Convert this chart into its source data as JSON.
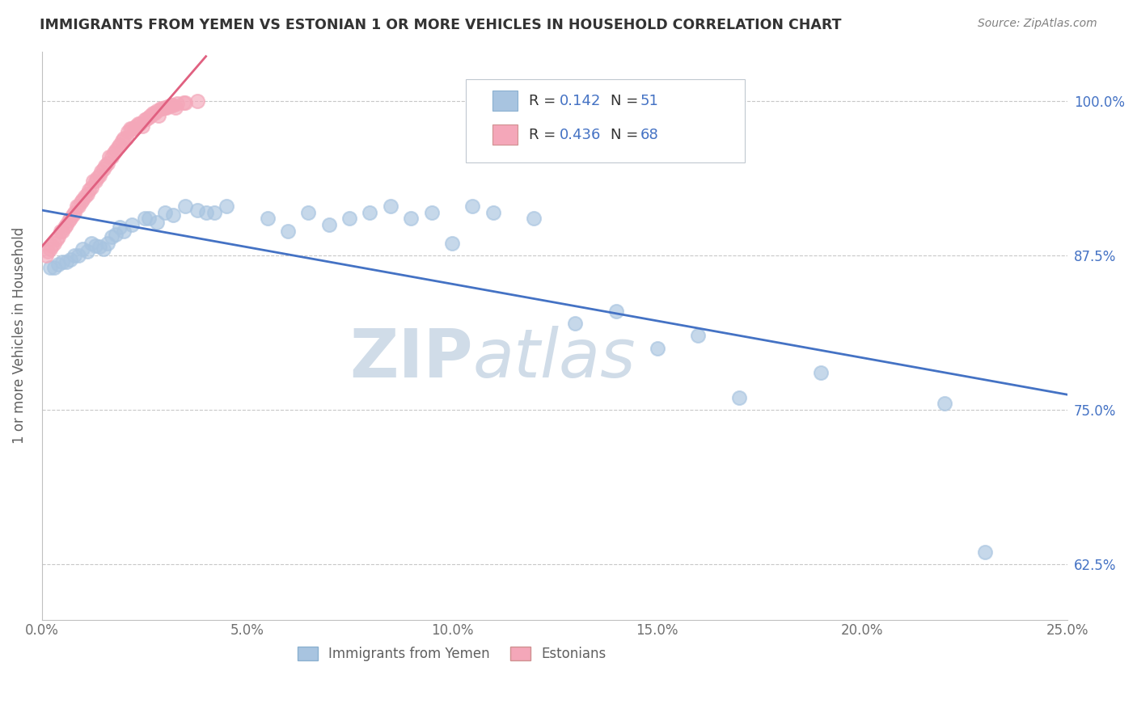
{
  "title": "IMMIGRANTS FROM YEMEN VS ESTONIAN 1 OR MORE VEHICLES IN HOUSEHOLD CORRELATION CHART",
  "source_text": "Source: ZipAtlas.com",
  "ylabel": "1 or more Vehicles in Household",
  "x_tick_labels": [
    "0.0%",
    "5.0%",
    "10.0%",
    "15.0%",
    "20.0%",
    "25.0%"
  ],
  "x_tick_values": [
    0.0,
    5.0,
    10.0,
    15.0,
    20.0,
    25.0
  ],
  "y_tick_labels": [
    "62.5%",
    "75.0%",
    "87.5%",
    "100.0%"
  ],
  "y_tick_values": [
    62.5,
    75.0,
    87.5,
    100.0
  ],
  "xlim": [
    0.0,
    25.0
  ],
  "ylim": [
    58.0,
    104.0
  ],
  "legend_labels": [
    "Immigrants from Yemen",
    "Estonians"
  ],
  "blue_color": "#A8C4E0",
  "pink_color": "#F4A7B9",
  "blue_line_color": "#4472C4",
  "pink_line_color": "#E06080",
  "title_color": "#333333",
  "source_color": "#808080",
  "legend_value_color": "#4472C4",
  "watermark_text": "ZIPatlas",
  "watermark_color": "#D0DCE8",
  "blue_scatter_x": [
    0.3,
    0.5,
    0.8,
    1.0,
    1.2,
    1.5,
    0.4,
    0.7,
    1.1,
    1.4,
    0.6,
    0.9,
    1.3,
    1.7,
    0.2,
    1.6,
    1.8,
    2.0,
    2.2,
    2.5,
    3.0,
    3.2,
    3.5,
    4.0,
    4.5,
    2.8,
    3.8,
    1.9,
    2.6,
    4.2,
    5.5,
    6.0,
    6.5,
    7.0,
    7.5,
    8.0,
    8.5,
    9.0,
    9.5,
    10.0,
    10.5,
    11.0,
    12.0,
    13.0,
    14.0,
    15.0,
    16.0,
    17.0,
    19.0,
    22.0,
    23.0
  ],
  "blue_scatter_y": [
    86.5,
    87.0,
    87.5,
    88.0,
    88.5,
    88.0,
    86.8,
    87.2,
    87.8,
    88.2,
    87.0,
    87.5,
    88.3,
    89.0,
    86.5,
    88.5,
    89.2,
    89.5,
    90.0,
    90.5,
    91.0,
    90.8,
    91.5,
    91.0,
    91.5,
    90.2,
    91.2,
    89.8,
    90.5,
    91.0,
    90.5,
    89.5,
    91.0,
    90.0,
    90.5,
    91.0,
    91.5,
    90.5,
    91.0,
    88.5,
    91.5,
    91.0,
    90.5,
    82.0,
    83.0,
    80.0,
    81.0,
    76.0,
    78.0,
    75.5,
    63.5
  ],
  "pink_scatter_x": [
    0.1,
    0.2,
    0.3,
    0.4,
    0.5,
    0.6,
    0.7,
    0.8,
    0.9,
    1.0,
    1.1,
    1.2,
    1.3,
    1.4,
    1.5,
    1.6,
    1.7,
    1.8,
    1.9,
    2.0,
    2.1,
    2.2,
    2.3,
    2.4,
    2.5,
    2.6,
    2.7,
    2.8,
    2.9,
    3.0,
    3.1,
    3.2,
    3.3,
    3.5,
    3.8,
    0.15,
    0.35,
    0.55,
    0.75,
    0.95,
    1.15,
    1.35,
    1.55,
    1.75,
    1.95,
    2.15,
    2.35,
    2.55,
    2.75,
    2.95,
    3.15,
    0.25,
    0.65,
    1.05,
    1.45,
    1.85,
    2.25,
    2.65,
    3.05,
    3.45,
    0.45,
    0.85,
    1.25,
    1.65,
    2.05,
    2.45,
    2.85,
    3.25
  ],
  "pink_scatter_y": [
    87.5,
    88.0,
    88.5,
    89.0,
    89.5,
    90.0,
    90.5,
    91.0,
    91.5,
    92.0,
    92.5,
    93.0,
    93.5,
    94.0,
    94.5,
    95.0,
    95.5,
    96.0,
    96.5,
    97.0,
    97.5,
    97.8,
    98.0,
    98.2,
    98.5,
    98.7,
    99.0,
    99.2,
    99.4,
    99.5,
    99.6,
    99.7,
    99.8,
    99.9,
    100.0,
    87.8,
    88.8,
    89.8,
    90.8,
    91.8,
    92.8,
    93.8,
    94.8,
    95.8,
    96.8,
    97.8,
    98.2,
    98.6,
    99.0,
    99.4,
    99.7,
    88.3,
    90.3,
    92.3,
    94.3,
    96.3,
    97.8,
    98.8,
    99.5,
    99.9,
    89.5,
    91.5,
    93.5,
    95.5,
    97.0,
    98.0,
    98.8,
    99.5
  ]
}
